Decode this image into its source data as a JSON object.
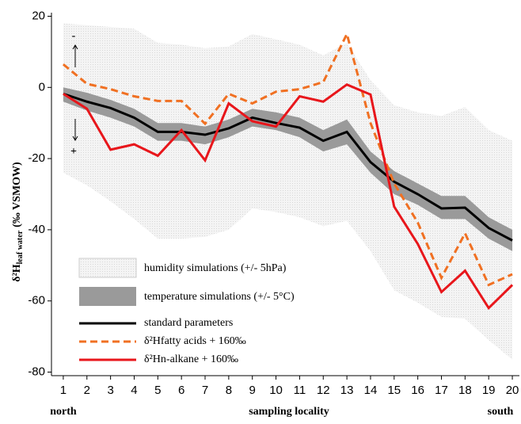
{
  "chart_data": {
    "type": "line",
    "ylabel": {
      "main": "δ²H",
      "sub": "leaf water",
      "unit": "(‰ VSMOW)"
    },
    "x": [
      1,
      2,
      3,
      4,
      5,
      6,
      7,
      8,
      9,
      10,
      11,
      12,
      13,
      14,
      15,
      16,
      17,
      18,
      19,
      20
    ],
    "xlim": [
      0.5,
      20.3
    ],
    "xticks": [
      1,
      2,
      3,
      4,
      5,
      6,
      7,
      8,
      9,
      10,
      11,
      12,
      13,
      14,
      15,
      16,
      17,
      18,
      19,
      20
    ],
    "ylim": [
      -81,
      21
    ],
    "yticks": [
      -80,
      -60,
      -40,
      -20,
      0,
      20
    ],
    "x_annotations": {
      "left": "north",
      "center": "sampling locality",
      "right": "south"
    },
    "direction_labels": {
      "up": "-",
      "down": "+"
    },
    "bands": [
      {
        "name": "humidity simulations (+/- 5hPa)",
        "color": "#e6e6e6",
        "upper": [
          18,
          17.5,
          17,
          16.5,
          12.5,
          12,
          11,
          11.5,
          15,
          13.5,
          12,
          9,
          12.5,
          2,
          -5,
          -7,
          -8,
          -5.5,
          -12,
          -15
        ],
        "lower": [
          -24,
          -27.5,
          -32,
          -37,
          -42.5,
          -42.5,
          -42,
          -40,
          -34,
          -35,
          -36.5,
          -39,
          -37.5,
          -46,
          -57,
          -60.5,
          -64.5,
          -65,
          -71,
          -76.5
        ]
      },
      {
        "name": "temperature simulations (+/- 5°C)",
        "color": "#9a9a9a",
        "upper": [
          0,
          -1.5,
          -3.5,
          -6,
          -10,
          -10,
          -11,
          -9,
          -6,
          -7,
          -8.5,
          -12,
          -9,
          -18,
          -23.5,
          -27,
          -30.5,
          -30.5,
          -36.5,
          -40
        ],
        "lower": [
          -4,
          -6.5,
          -8.5,
          -11,
          -15,
          -15,
          -16,
          -14,
          -11,
          -12,
          -14,
          -18,
          -16,
          -24,
          -30,
          -33,
          -37,
          -37,
          -42.5,
          -46
        ]
      }
    ],
    "series": [
      {
        "name": "standard parameters",
        "color": "#000000",
        "dash": false,
        "values": [
          -1.8,
          -4,
          -5.8,
          -8.5,
          -12.5,
          -12.5,
          -13.3,
          -11.5,
          -8.5,
          -10,
          -11.3,
          -15,
          -12.5,
          -21,
          -26.5,
          -30,
          -34,
          -33.8,
          -39.5,
          -43
        ]
      },
      {
        "name": "δ²Hfatty acids + 160‰",
        "color": "#f07022",
        "dash": true,
        "values": [
          6.5,
          1,
          -0.5,
          -2.5,
          -3.8,
          -3.8,
          -10.2,
          -1.8,
          -4.5,
          -1.2,
          -0.5,
          1.5,
          15,
          -10,
          -27,
          -38,
          -53.5,
          -41,
          -55.5,
          -52.5
        ]
      },
      {
        "name": "δ²Hn-alkane + 160‰",
        "color": "#e8161b",
        "dash": false,
        "values": [
          -1.8,
          -6,
          -17.5,
          -16,
          -19.2,
          -12,
          -20.5,
          -4.5,
          -9.5,
          -11,
          -2.5,
          -4,
          0.8,
          -2,
          -33.5,
          -44,
          -57.5,
          -51.5,
          -62,
          -55.5
        ]
      }
    ]
  }
}
